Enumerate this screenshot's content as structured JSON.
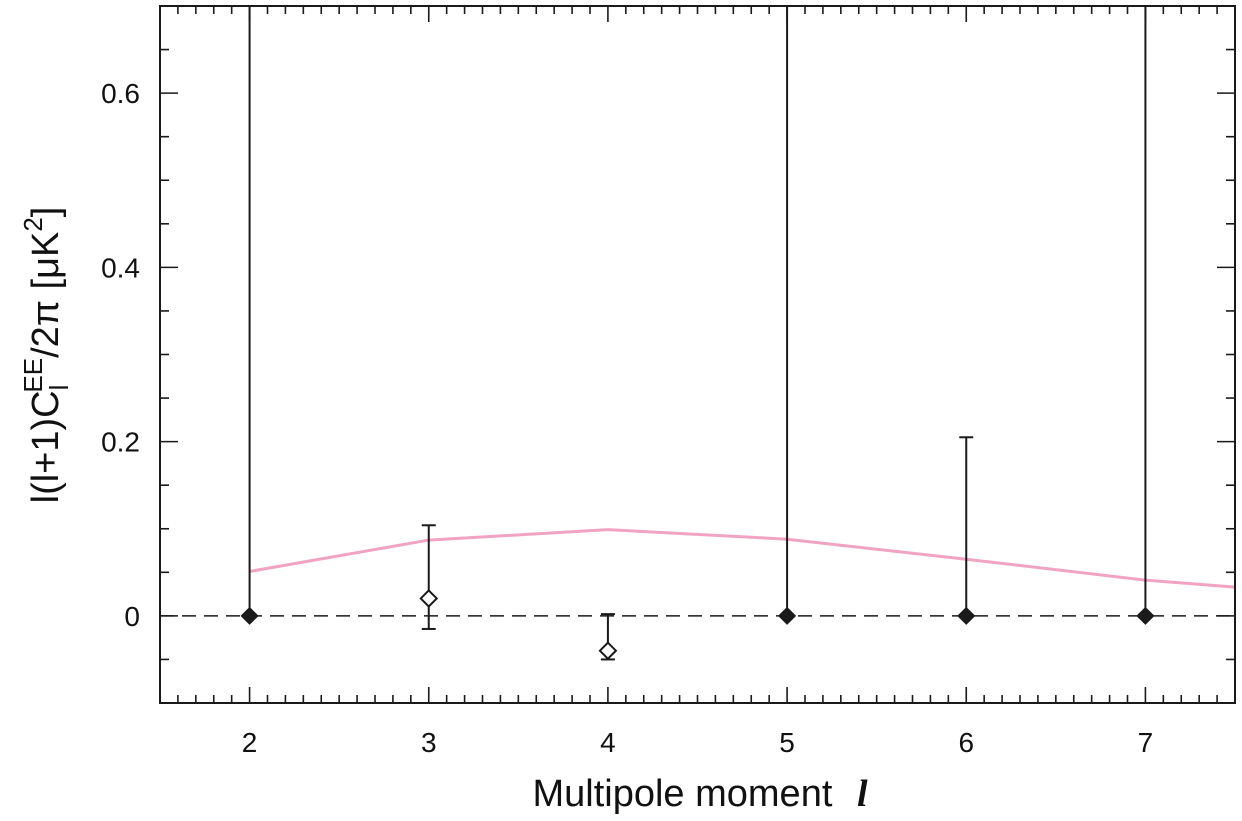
{
  "chart_data": {
    "type": "scatter",
    "xlabel": "Multipole moment",
    "xlabel_symbol": "l",
    "ylabel": {
      "prefix": "l(l+1)C",
      "sub": "l",
      "sup": "EE",
      "suffix": "/2π [μK",
      "unit_sup": "2",
      "close": "]"
    },
    "xlim": [
      1.5,
      7.5
    ],
    "ylim": [
      -0.1,
      0.7
    ],
    "x_ticks": [
      2,
      3,
      4,
      5,
      6,
      7
    ],
    "y_ticks": [
      0,
      0.2,
      0.4,
      0.6
    ],
    "x_tick_labels": [
      "2",
      "3",
      "4",
      "5",
      "6",
      "7"
    ],
    "y_tick_labels": [
      "0",
      "0.2",
      "0.4",
      "0.6"
    ],
    "reference_line_y": 0,
    "series": [
      {
        "marker": "filled-diamond",
        "points": [
          {
            "x": 2,
            "y": 0,
            "err_low": 0,
            "err_high": 0.7
          },
          {
            "x": 5,
            "y": 0,
            "err_low": 0,
            "err_high": 0.7
          },
          {
            "x": 6,
            "y": 0,
            "err_low": 0,
            "err_high": 0.205
          },
          {
            "x": 7,
            "y": 0,
            "err_low": 0,
            "err_high": 0.7
          }
        ]
      },
      {
        "marker": "open-diamond",
        "points": [
          {
            "x": 3,
            "y": 0.02,
            "err_low": -0.015,
            "err_high": 0.104
          },
          {
            "x": 4,
            "y": -0.04,
            "err_low": -0.05,
            "err_high": 0.002
          }
        ]
      },
      {
        "type": "line",
        "color": "#f0a3c3",
        "points": [
          {
            "x": 2,
            "y": 0.051
          },
          {
            "x": 3,
            "y": 0.087
          },
          {
            "x": 4,
            "y": 0.099
          },
          {
            "x": 5,
            "y": 0.088
          },
          {
            "x": 6,
            "y": 0.065
          },
          {
            "x": 7,
            "y": 0.041
          },
          {
            "x": 7.5,
            "y": 0.033
          }
        ]
      }
    ],
    "colors": {
      "markers": "#1a1a1a",
      "model_line": "#f0a3c3",
      "axes": "#1a1a1a"
    }
  }
}
